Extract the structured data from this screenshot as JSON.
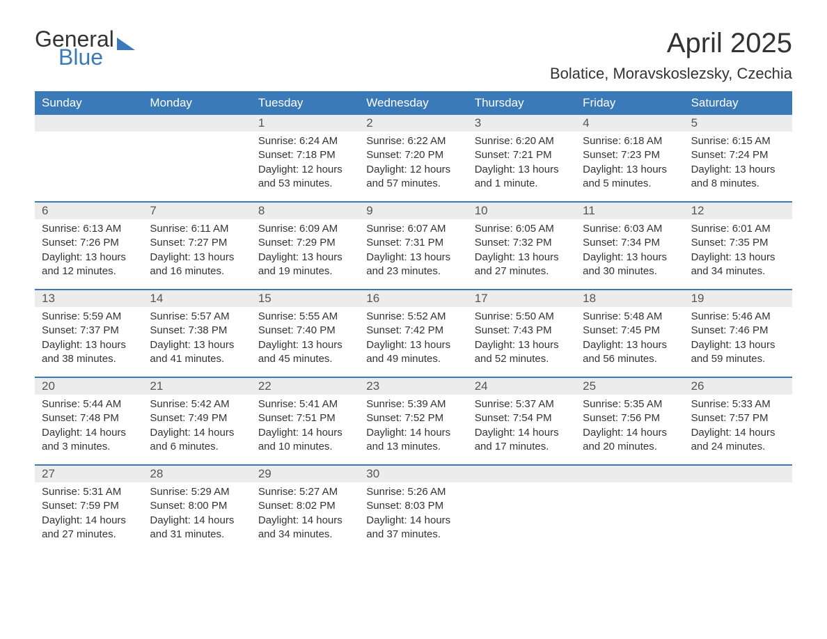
{
  "logo": {
    "text1": "General",
    "text2": "Blue"
  },
  "title": "April 2025",
  "location": "Bolatice, Moravskoslezsky, Czechia",
  "colors": {
    "header_bg": "#3a7ab8",
    "daynum_bg": "#ececec",
    "border": "#3a7ab8"
  },
  "day_labels": [
    "Sunday",
    "Monday",
    "Tuesday",
    "Wednesday",
    "Thursday",
    "Friday",
    "Saturday"
  ],
  "weeks": [
    [
      {
        "day": "",
        "sunrise": "",
        "sunset": "",
        "daylight": ""
      },
      {
        "day": "",
        "sunrise": "",
        "sunset": "",
        "daylight": ""
      },
      {
        "day": "1",
        "sunrise": "Sunrise: 6:24 AM",
        "sunset": "Sunset: 7:18 PM",
        "daylight": "Daylight: 12 hours and 53 minutes."
      },
      {
        "day": "2",
        "sunrise": "Sunrise: 6:22 AM",
        "sunset": "Sunset: 7:20 PM",
        "daylight": "Daylight: 12 hours and 57 minutes."
      },
      {
        "day": "3",
        "sunrise": "Sunrise: 6:20 AM",
        "sunset": "Sunset: 7:21 PM",
        "daylight": "Daylight: 13 hours and 1 minute."
      },
      {
        "day": "4",
        "sunrise": "Sunrise: 6:18 AM",
        "sunset": "Sunset: 7:23 PM",
        "daylight": "Daylight: 13 hours and 5 minutes."
      },
      {
        "day": "5",
        "sunrise": "Sunrise: 6:15 AM",
        "sunset": "Sunset: 7:24 PM",
        "daylight": "Daylight: 13 hours and 8 minutes."
      }
    ],
    [
      {
        "day": "6",
        "sunrise": "Sunrise: 6:13 AM",
        "sunset": "Sunset: 7:26 PM",
        "daylight": "Daylight: 13 hours and 12 minutes."
      },
      {
        "day": "7",
        "sunrise": "Sunrise: 6:11 AM",
        "sunset": "Sunset: 7:27 PM",
        "daylight": "Daylight: 13 hours and 16 minutes."
      },
      {
        "day": "8",
        "sunrise": "Sunrise: 6:09 AM",
        "sunset": "Sunset: 7:29 PM",
        "daylight": "Daylight: 13 hours and 19 minutes."
      },
      {
        "day": "9",
        "sunrise": "Sunrise: 6:07 AM",
        "sunset": "Sunset: 7:31 PM",
        "daylight": "Daylight: 13 hours and 23 minutes."
      },
      {
        "day": "10",
        "sunrise": "Sunrise: 6:05 AM",
        "sunset": "Sunset: 7:32 PM",
        "daylight": "Daylight: 13 hours and 27 minutes."
      },
      {
        "day": "11",
        "sunrise": "Sunrise: 6:03 AM",
        "sunset": "Sunset: 7:34 PM",
        "daylight": "Daylight: 13 hours and 30 minutes."
      },
      {
        "day": "12",
        "sunrise": "Sunrise: 6:01 AM",
        "sunset": "Sunset: 7:35 PM",
        "daylight": "Daylight: 13 hours and 34 minutes."
      }
    ],
    [
      {
        "day": "13",
        "sunrise": "Sunrise: 5:59 AM",
        "sunset": "Sunset: 7:37 PM",
        "daylight": "Daylight: 13 hours and 38 minutes."
      },
      {
        "day": "14",
        "sunrise": "Sunrise: 5:57 AM",
        "sunset": "Sunset: 7:38 PM",
        "daylight": "Daylight: 13 hours and 41 minutes."
      },
      {
        "day": "15",
        "sunrise": "Sunrise: 5:55 AM",
        "sunset": "Sunset: 7:40 PM",
        "daylight": "Daylight: 13 hours and 45 minutes."
      },
      {
        "day": "16",
        "sunrise": "Sunrise: 5:52 AM",
        "sunset": "Sunset: 7:42 PM",
        "daylight": "Daylight: 13 hours and 49 minutes."
      },
      {
        "day": "17",
        "sunrise": "Sunrise: 5:50 AM",
        "sunset": "Sunset: 7:43 PM",
        "daylight": "Daylight: 13 hours and 52 minutes."
      },
      {
        "day": "18",
        "sunrise": "Sunrise: 5:48 AM",
        "sunset": "Sunset: 7:45 PM",
        "daylight": "Daylight: 13 hours and 56 minutes."
      },
      {
        "day": "19",
        "sunrise": "Sunrise: 5:46 AM",
        "sunset": "Sunset: 7:46 PM",
        "daylight": "Daylight: 13 hours and 59 minutes."
      }
    ],
    [
      {
        "day": "20",
        "sunrise": "Sunrise: 5:44 AM",
        "sunset": "Sunset: 7:48 PM",
        "daylight": "Daylight: 14 hours and 3 minutes."
      },
      {
        "day": "21",
        "sunrise": "Sunrise: 5:42 AM",
        "sunset": "Sunset: 7:49 PM",
        "daylight": "Daylight: 14 hours and 6 minutes."
      },
      {
        "day": "22",
        "sunrise": "Sunrise: 5:41 AM",
        "sunset": "Sunset: 7:51 PM",
        "daylight": "Daylight: 14 hours and 10 minutes."
      },
      {
        "day": "23",
        "sunrise": "Sunrise: 5:39 AM",
        "sunset": "Sunset: 7:52 PM",
        "daylight": "Daylight: 14 hours and 13 minutes."
      },
      {
        "day": "24",
        "sunrise": "Sunrise: 5:37 AM",
        "sunset": "Sunset: 7:54 PM",
        "daylight": "Daylight: 14 hours and 17 minutes."
      },
      {
        "day": "25",
        "sunrise": "Sunrise: 5:35 AM",
        "sunset": "Sunset: 7:56 PM",
        "daylight": "Daylight: 14 hours and 20 minutes."
      },
      {
        "day": "26",
        "sunrise": "Sunrise: 5:33 AM",
        "sunset": "Sunset: 7:57 PM",
        "daylight": "Daylight: 14 hours and 24 minutes."
      }
    ],
    [
      {
        "day": "27",
        "sunrise": "Sunrise: 5:31 AM",
        "sunset": "Sunset: 7:59 PM",
        "daylight": "Daylight: 14 hours and 27 minutes."
      },
      {
        "day": "28",
        "sunrise": "Sunrise: 5:29 AM",
        "sunset": "Sunset: 8:00 PM",
        "daylight": "Daylight: 14 hours and 31 minutes."
      },
      {
        "day": "29",
        "sunrise": "Sunrise: 5:27 AM",
        "sunset": "Sunset: 8:02 PM",
        "daylight": "Daylight: 14 hours and 34 minutes."
      },
      {
        "day": "30",
        "sunrise": "Sunrise: 5:26 AM",
        "sunset": "Sunset: 8:03 PM",
        "daylight": "Daylight: 14 hours and 37 minutes."
      },
      {
        "day": "",
        "sunrise": "",
        "sunset": "",
        "daylight": ""
      },
      {
        "day": "",
        "sunrise": "",
        "sunset": "",
        "daylight": ""
      },
      {
        "day": "",
        "sunrise": "",
        "sunset": "",
        "daylight": ""
      }
    ]
  ]
}
